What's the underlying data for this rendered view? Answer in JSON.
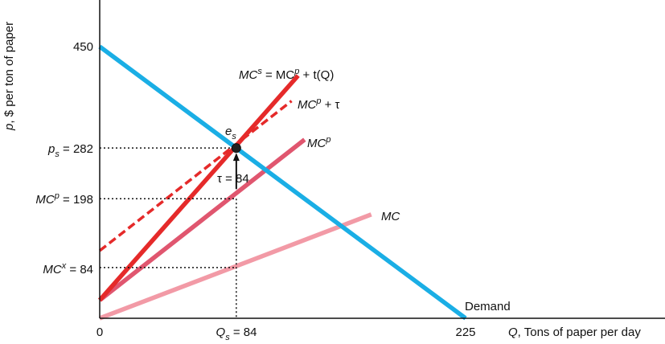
{
  "chart_data": {
    "type": "line",
    "xlabel_var": "Q",
    "xlabel": ", Tons of paper per day",
    "ylabel_var": "p",
    "ylabel": ", $ per ton of paper",
    "xlim": [
      0,
      225
    ],
    "ylim": [
      0,
      450
    ],
    "colors": {
      "demand": "#1aaee5",
      "mc": "#f29aa6",
      "mcp": "#e0566f",
      "mcs": "#e52a2a",
      "mcp_tau": "#e52a2a",
      "axis": "#111111"
    },
    "series": [
      {
        "key": "demand",
        "name": "Demand",
        "style": "solid",
        "x": [
          0,
          225
        ],
        "y": [
          450,
          0
        ]
      },
      {
        "key": "mcs",
        "name": "MCs = MCp + t(Q)",
        "style": "solid",
        "x": [
          0,
          122
        ],
        "y": [
          30,
          402
        ]
      },
      {
        "key": "mcp_tau",
        "name": "MCp + τ",
        "style": "dashed",
        "x": [
          0,
          118
        ],
        "y": [
          112,
          360
        ]
      },
      {
        "key": "mcp",
        "name": "MCp",
        "style": "solid",
        "x": [
          0,
          126
        ],
        "y": [
          30,
          296
        ]
      },
      {
        "key": "mc",
        "name": "MC",
        "style": "solid",
        "x": [
          0,
          167
        ],
        "y": [
          0,
          172
        ]
      }
    ],
    "ticks": {
      "x": [
        {
          "value": 0,
          "label": "0"
        },
        {
          "value": 84,
          "label_var": "Q",
          "label_sub": "s",
          "label": " = 84"
        },
        {
          "value": 225,
          "label": "225"
        }
      ],
      "y": [
        {
          "value": 450,
          "label": "450"
        },
        {
          "value": 282,
          "label_var": "p",
          "label_sub": "s",
          "label": " = 282"
        },
        {
          "value": 198,
          "label_var": "MC",
          "label_sup": "p",
          "label": " = 198"
        },
        {
          "value": 84,
          "label_var": "MC",
          "label_sup": "x",
          "label": " = 84"
        }
      ]
    },
    "equilibrium": {
      "x": 84,
      "y": 282,
      "label_var": "e",
      "label_sub": "s"
    },
    "tax_annotation": {
      "x": 84,
      "y_top": 282,
      "y_bottom": 198,
      "label": "τ = 84"
    },
    "labels": {
      "mcs_1": "MC",
      "mcs_sup1": "s",
      "mcs_2": " = MC",
      "mcs_sup2": "p",
      "mcs_3": " + t(Q)",
      "mcptau_1": "MC",
      "mcptau_sup": "p",
      "mcptau_2": " + τ",
      "mcp_1": "MC",
      "mcp_sup": "p",
      "mc": "MC",
      "demand": "Demand"
    }
  }
}
